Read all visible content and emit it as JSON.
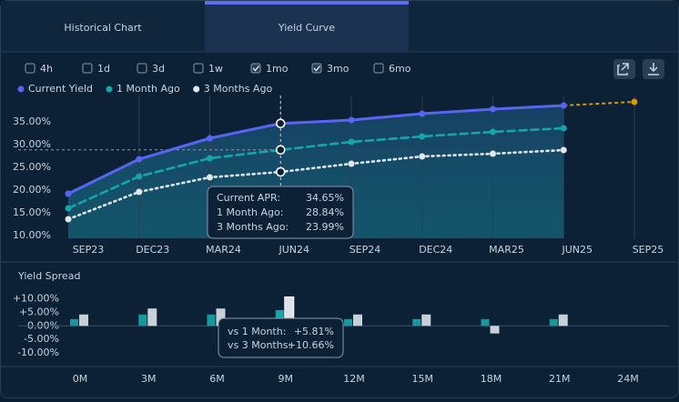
{
  "tabs": [
    {
      "label": "Historical Chart",
      "active": false
    },
    {
      "label": "Yield Curve",
      "active": true
    }
  ],
  "filters": [
    {
      "label": "4h",
      "checked": false
    },
    {
      "label": "1d",
      "checked": false
    },
    {
      "label": "3d",
      "checked": false
    },
    {
      "label": "1w",
      "checked": false
    },
    {
      "label": "1mo",
      "checked": true
    },
    {
      "label": "3mo",
      "checked": true
    },
    {
      "label": "6mo",
      "checked": false
    }
  ],
  "chart_data": [
    {
      "type": "line",
      "categories": [
        "SEP23",
        "DEC23",
        "MAR24",
        "JUN24",
        "SEP24",
        "DEC24",
        "MAR25",
        "JUN25",
        "SEP25"
      ],
      "series": [
        {
          "name": "Current Yield",
          "color": "#5865f2",
          "style": "solid",
          "values": [
            19.2,
            26.8,
            31.4,
            34.65,
            35.4,
            36.8,
            37.8,
            38.6,
            39.4
          ],
          "projection": {
            "from_index": 7,
            "color": "#d4980f"
          }
        },
        {
          "name": "1 Month Ago",
          "color": "#17a5ab",
          "style": "dashed",
          "values": [
            16,
            23,
            27,
            28.84,
            30.6,
            31.8,
            32.8,
            33.6,
            null
          ]
        },
        {
          "name": "3 Months Ago",
          "color": "#e3e8ee",
          "style": "dotted",
          "values": [
            13.6,
            19.6,
            22.8,
            23.99,
            25.8,
            27.4,
            28,
            28.8,
            null
          ]
        }
      ],
      "ylim": [
        9.4,
        40.8
      ],
      "yticks": [
        {
          "value": 10,
          "label": "10.00%"
        },
        {
          "value": 15,
          "label": "15.00%"
        },
        {
          "value": 20,
          "label": "20.00%"
        },
        {
          "value": 25,
          "label": "25.00%"
        },
        {
          "value": 30,
          "label": "30.00%"
        },
        {
          "value": 35,
          "label": "35.00%"
        }
      ],
      "grid": true,
      "hover_index": 3,
      "tooltip": [
        {
          "label": "Current APR:",
          "value": "34.65%"
        },
        {
          "label": "1 Month Ago:",
          "value": "28.84%"
        },
        {
          "label": "3 Months Ago:",
          "value": "23.99%"
        }
      ]
    },
    {
      "type": "bar",
      "title": "Yield Spread",
      "categories": [
        "0M",
        "3M",
        "6M",
        "9M",
        "12M",
        "15M",
        "18M",
        "21M",
        "24M"
      ],
      "series": [
        {
          "name": "vs 1 Month",
          "color": "#17a5ab",
          "values": [
            2.5,
            4.2,
            4.2,
            5.81,
            2.5,
            2.5,
            2.5,
            2.5,
            null
          ]
        },
        {
          "name": "vs 3 Months",
          "color": "#dde3ea",
          "values": [
            4.2,
            6.4,
            6.4,
            10.66,
            4.2,
            4.2,
            -2.8,
            4.2,
            null
          ]
        }
      ],
      "ylim": [
        -13.3,
        13.5
      ],
      "yticks": [
        {
          "value": 10,
          "label": "+10.00%"
        },
        {
          "value": 5,
          "label": "+5.00%"
        },
        {
          "value": 0,
          "label": "0.00%"
        },
        {
          "value": -5,
          "label": "-5.00%"
        },
        {
          "value": -10,
          "label": "-10.00%"
        }
      ],
      "hover_index": 3,
      "tooltip": [
        {
          "label": "vs 1 Month:",
          "value": "+5.81%"
        },
        {
          "label": "vs 3 Months:",
          "value": "+10.66%"
        }
      ]
    }
  ]
}
